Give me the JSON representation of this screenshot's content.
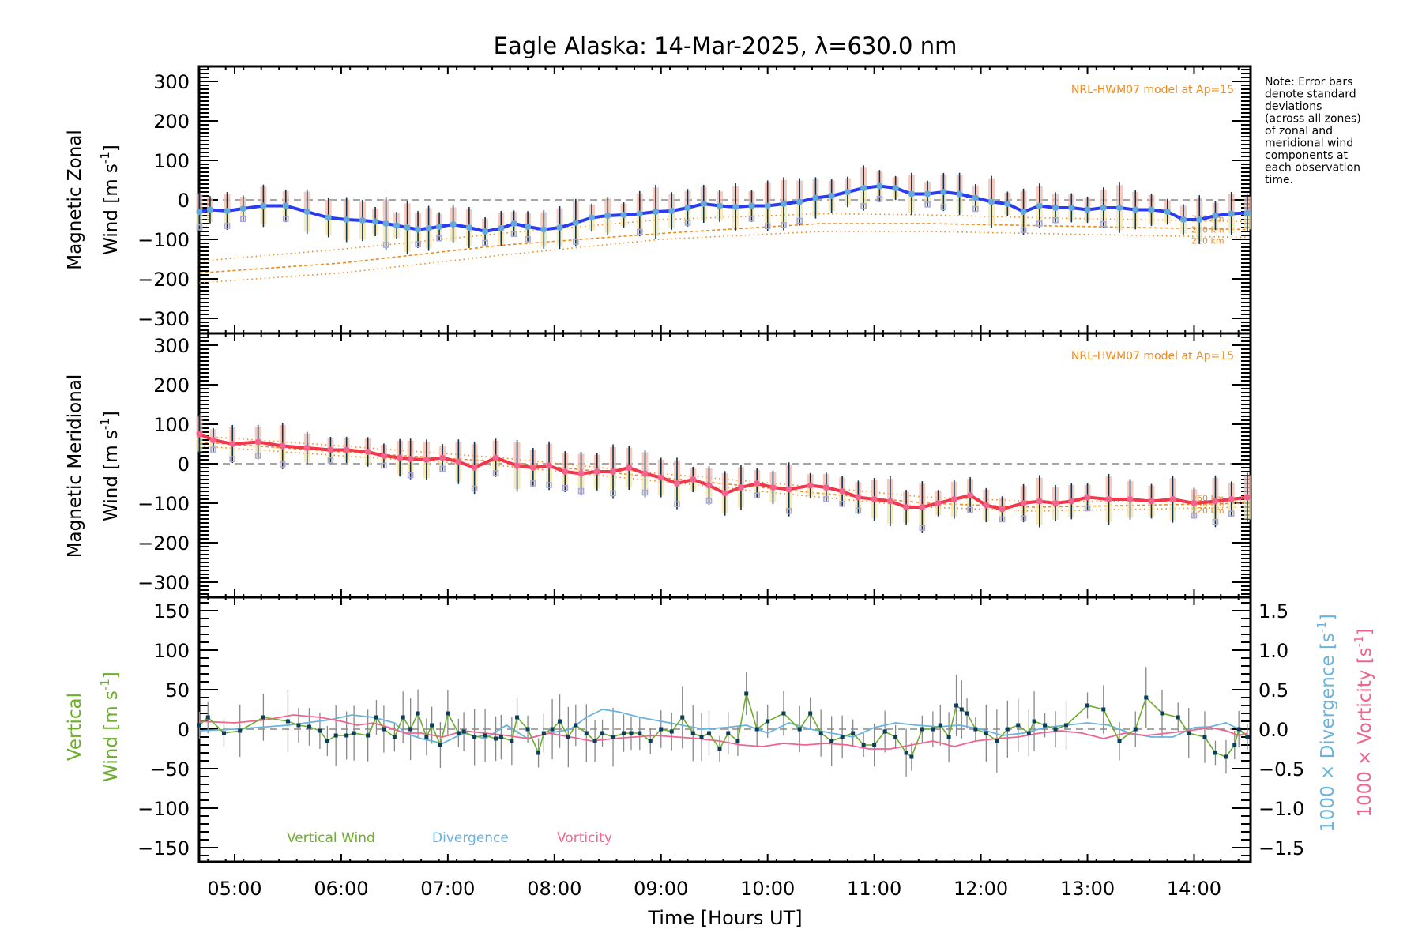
{
  "chart_data": [
    {
      "type": "line",
      "panel": "zonal",
      "title": "Eagle Alaska: 14-Mar-2025, λ=630.0 nm",
      "ylabel_line1": "Magnetic Zonal",
      "ylabel_line2": "Wind [m s",
      "ylabel_sup": "-1",
      "ylabel_close": "]",
      "ylim": [
        -338,
        338
      ],
      "yticks": [
        300,
        200,
        100,
        0,
        -100,
        -200,
        -300
      ],
      "ytick_labels": [
        "300",
        "200",
        "100",
        "0",
        "−100",
        "−200",
        "−300"
      ],
      "model_label": "NRL-HWM07 model at Ap=15",
      "model_altitudes": [
        "260 km",
        "240 km",
        "220 km"
      ],
      "series_color": "#2b3cf0",
      "series": {
        "name": "Zonal wind",
        "x": [
          4.67,
          4.77,
          4.93,
          5.08,
          5.27,
          5.48,
          5.68,
          5.88,
          6.05,
          6.2,
          6.32,
          6.42,
          6.52,
          6.62,
          6.72,
          6.82,
          6.92,
          7.05,
          7.2,
          7.35,
          7.5,
          7.62,
          7.75,
          7.9,
          8.05,
          8.2,
          8.35,
          8.5,
          8.65,
          8.8,
          8.95,
          9.1,
          9.25,
          9.4,
          9.55,
          9.7,
          9.85,
          10.0,
          10.15,
          10.3,
          10.45,
          10.6,
          10.75,
          10.9,
          11.05,
          11.2,
          11.35,
          11.5,
          11.65,
          11.8,
          11.95,
          12.1,
          12.25,
          12.4,
          12.55,
          12.7,
          12.85,
          13.0,
          13.15,
          13.3,
          13.45,
          13.6,
          13.75,
          13.9,
          14.05,
          14.2,
          14.35,
          14.5
        ],
        "values": [
          -30,
          -25,
          -28,
          -22,
          -15,
          -15,
          -30,
          -45,
          -50,
          -52,
          -55,
          -60,
          -65,
          -70,
          -75,
          -72,
          -68,
          -62,
          -70,
          -80,
          -72,
          -60,
          -68,
          -75,
          -70,
          -58,
          -45,
          -40,
          -38,
          -35,
          -30,
          -28,
          -20,
          -10,
          -15,
          -18,
          -15,
          -15,
          -10,
          -5,
          5,
          10,
          20,
          30,
          35,
          30,
          15,
          15,
          20,
          15,
          5,
          -5,
          -10,
          -30,
          -15,
          -20,
          -20,
          -25,
          -20,
          -20,
          -25,
          -25,
          -30,
          -50,
          -50,
          -40,
          -35,
          -33
        ]
      },
      "model_curves": [
        {
          "name": "260 km",
          "x": [
            4.67,
            6.0,
            7.5,
            9.0,
            10.5,
            11.5,
            12.5,
            13.5,
            14.5
          ],
          "values": [
            -155,
            -125,
            -85,
            -50,
            -35,
            -38,
            -45,
            -50,
            -55
          ]
        },
        {
          "name": "240 km",
          "x": [
            4.67,
            6.0,
            7.5,
            9.0,
            10.5,
            11.5,
            12.5,
            13.5,
            14.5
          ],
          "values": [
            -185,
            -160,
            -115,
            -85,
            -60,
            -60,
            -65,
            -70,
            -75
          ]
        },
        {
          "name": "220 km",
          "x": [
            4.67,
            6.0,
            7.5,
            9.0,
            10.5,
            11.5,
            12.5,
            13.5,
            14.5
          ],
          "values": [
            -210,
            -185,
            -140,
            -100,
            -80,
            -80,
            -85,
            -90,
            -95
          ]
        }
      ],
      "note": [
        "Note: Error bars",
        "denote standard",
        "deviations",
        "(across all zones)",
        "of zonal and",
        "meridional wind",
        "components at",
        "each observation",
        "time."
      ]
    },
    {
      "type": "line",
      "panel": "meridional",
      "ylabel_line1": "Magnetic Meridional",
      "ylabel_line2": "Wind [m s",
      "ylabel_sup": "-1",
      "ylabel_close": "]",
      "ylim": [
        -338,
        338
      ],
      "yticks": [
        300,
        200,
        100,
        0,
        -100,
        -200,
        -300
      ],
      "ytick_labels": [
        "300",
        "200",
        "100",
        "0",
        "−100",
        "−200",
        "−300"
      ],
      "model_label": "NRL-HWM07 model at Ap=15",
      "model_altitudes": [
        "260 km",
        "240 km",
        "220 km"
      ],
      "series_color": "#f2364b",
      "series": {
        "name": "Meridional wind",
        "x": [
          4.67,
          4.8,
          4.98,
          5.22,
          5.45,
          5.68,
          5.9,
          6.05,
          6.25,
          6.4,
          6.55,
          6.65,
          6.8,
          6.95,
          7.1,
          7.25,
          7.45,
          7.65,
          7.8,
          7.95,
          8.1,
          8.25,
          8.4,
          8.55,
          8.7,
          8.85,
          9.0,
          9.15,
          9.3,
          9.45,
          9.6,
          9.75,
          9.9,
          10.05,
          10.2,
          10.4,
          10.55,
          10.7,
          10.85,
          11.0,
          11.15,
          11.3,
          11.45,
          11.6,
          11.75,
          11.9,
          12.05,
          12.2,
          12.4,
          12.55,
          12.7,
          12.85,
          13.0,
          13.2,
          13.4,
          13.6,
          13.8,
          14.0,
          14.2,
          14.35,
          14.5
        ],
        "values": [
          75,
          60,
          50,
          55,
          45,
          40,
          35,
          35,
          30,
          20,
          15,
          12,
          10,
          15,
          5,
          -10,
          15,
          -5,
          -10,
          -5,
          -20,
          -25,
          -20,
          -20,
          -10,
          -25,
          -35,
          -50,
          -40,
          -55,
          -75,
          -60,
          -50,
          -60,
          -65,
          -55,
          -60,
          -70,
          -85,
          -90,
          -95,
          -110,
          -110,
          -100,
          -90,
          -80,
          -105,
          -115,
          -100,
          -95,
          -100,
          -95,
          -85,
          -90,
          -90,
          -95,
          -90,
          -100,
          -95,
          -90,
          -85
        ]
      },
      "model_curves": [
        {
          "name": "260 km",
          "x": [
            4.67,
            6.0,
            7.5,
            9.0,
            10.5,
            11.5,
            12.5,
            13.5,
            14.5
          ],
          "values": [
            70,
            45,
            15,
            -25,
            -60,
            -85,
            -95,
            -95,
            -95
          ]
        },
        {
          "name": "240 km",
          "x": [
            4.67,
            6.0,
            7.5,
            9.0,
            10.5,
            11.5,
            12.5,
            13.5,
            14.5
          ],
          "values": [
            55,
            30,
            5,
            -35,
            -75,
            -100,
            -110,
            -105,
            -100
          ]
        },
        {
          "name": "220 km",
          "x": [
            4.67,
            6.0,
            7.5,
            9.0,
            10.5,
            11.5,
            12.5,
            13.5,
            14.5
          ],
          "values": [
            45,
            20,
            -5,
            -45,
            -85,
            -110,
            -120,
            -115,
            -110
          ]
        }
      ]
    },
    {
      "type": "line",
      "panel": "vertical",
      "ylabel_line1": "Vertical",
      "ylabel_line2": "Wind [m s",
      "ylabel_sup": "-1",
      "ylabel_close": "]",
      "ylim": [
        -170,
        170
      ],
      "yticks": [
        150,
        100,
        50,
        0,
        -50,
        -100,
        -150
      ],
      "ytick_labels": [
        "150",
        "100",
        "50",
        "0",
        "−50",
        "−100",
        "−150"
      ],
      "y2lim": [
        -1.7,
        1.7
      ],
      "y2ticks": [
        1.5,
        1.0,
        0.5,
        0.0,
        -0.5,
        -1.0,
        -1.5
      ],
      "y2tick_labels": [
        "1.5",
        "1.0",
        "0.5",
        "0.0",
        "−0.5",
        "−1.0",
        "−1.5"
      ],
      "y2label_div": "1000 × Divergence [s",
      "y2label_vort": "1000 × Vorticity [s",
      "y2label_sup": "-1",
      "y2label_close": "]",
      "xlabel": "Time [Hours UT]",
      "xticks": [
        5,
        6,
        7,
        8,
        9,
        10,
        11,
        12,
        13,
        14
      ],
      "xtick_labels": [
        "05:00",
        "06:00",
        "07:00",
        "08:00",
        "09:00",
        "10:00",
        "11:00",
        "12:00",
        "13:00",
        "14:00"
      ],
      "xlim": [
        4.6667,
        14.53
      ],
      "legend": [
        {
          "label": "Vertical Wind",
          "color": "#6cae2c"
        },
        {
          "label": "Divergence",
          "color": "#6ab3df"
        },
        {
          "label": "Vorticity",
          "color": "#f2648e"
        }
      ],
      "series": [
        {
          "name": "Vertical Wind",
          "color": "#6cae2c",
          "x": [
            4.67,
            4.75,
            4.9,
            5.05,
            5.27,
            5.5,
            5.6,
            5.7,
            5.8,
            5.87,
            5.95,
            6.05,
            6.12,
            6.25,
            6.33,
            6.4,
            6.5,
            6.58,
            6.65,
            6.72,
            6.8,
            6.85,
            6.93,
            7.0,
            7.1,
            7.15,
            7.25,
            7.35,
            7.45,
            7.5,
            7.6,
            7.65,
            7.75,
            7.85,
            7.9,
            7.98,
            8.05,
            8.13,
            8.2,
            8.3,
            8.38,
            8.45,
            8.55,
            8.65,
            8.72,
            8.8,
            8.9,
            9.0,
            9.1,
            9.2,
            9.3,
            9.38,
            9.45,
            9.55,
            9.63,
            9.72,
            9.8,
            9.9,
            10.0,
            10.15,
            10.3,
            10.4,
            10.5,
            10.6,
            10.7,
            10.8,
            10.9,
            11.0,
            11.1,
            11.2,
            11.3,
            11.35,
            11.45,
            11.55,
            11.62,
            11.7,
            11.77,
            11.82,
            11.87,
            11.95,
            12.05,
            12.15,
            12.25,
            12.35,
            12.45,
            12.5,
            12.6,
            12.7,
            12.8,
            13.0,
            13.15,
            13.3,
            13.45,
            13.55,
            13.7,
            13.85,
            13.95,
            14.1,
            14.2,
            14.3,
            14.38,
            14.42,
            14.5
          ],
          "values": [
            5,
            15,
            -5,
            -2,
            15,
            10,
            5,
            3,
            -2,
            -15,
            -8,
            -8,
            -5,
            -8,
            15,
            0,
            -10,
            15,
            0,
            20,
            -10,
            5,
            -20,
            20,
            -5,
            -3,
            -10,
            -8,
            -12,
            -10,
            -15,
            15,
            0,
            -30,
            -5,
            0,
            10,
            -10,
            5,
            -5,
            -15,
            -5,
            -10,
            -5,
            -5,
            -5,
            -15,
            0,
            -3,
            15,
            -5,
            -10,
            -5,
            -25,
            -5,
            -15,
            45,
            0,
            10,
            20,
            0,
            20,
            -5,
            -15,
            -10,
            -5,
            -20,
            -20,
            -3,
            -10,
            -30,
            -35,
            0,
            0,
            5,
            -10,
            30,
            25,
            20,
            0,
            -5,
            -15,
            0,
            5,
            -5,
            10,
            5,
            0,
            5,
            30,
            25,
            -15,
            0,
            40,
            20,
            15,
            -5,
            -10,
            -30,
            -35,
            -20,
            0,
            -10
          ]
        },
        {
          "name": "Divergence",
          "color": "#6ab3df",
          "x": [
            4.67,
            5.0,
            5.5,
            5.9,
            6.1,
            6.3,
            6.5,
            6.6,
            6.75,
            6.95,
            7.15,
            7.35,
            7.55,
            7.75,
            7.95,
            8.15,
            8.3,
            8.45,
            8.6,
            8.8,
            9.0,
            9.2,
            9.4,
            9.6,
            9.8,
            10.0,
            10.2,
            10.4,
            10.6,
            10.8,
            11.0,
            11.2,
            11.4,
            11.6,
            11.8,
            12.0,
            12.2,
            12.4,
            12.6,
            12.8,
            13.0,
            13.2,
            13.4,
            13.6,
            13.8,
            14.0,
            14.15,
            14.3,
            14.42,
            14.5
          ],
          "values": [
            -0.02,
            0.0,
            0.05,
            0.12,
            0.18,
            0.15,
            0.08,
            -0.05,
            -0.12,
            -0.18,
            -0.05,
            -0.12,
            0.05,
            -0.12,
            -0.05,
            0.0,
            0.15,
            0.25,
            0.22,
            0.15,
            0.1,
            0.05,
            0.0,
            0.02,
            0.05,
            -0.05,
            0.08,
            0.0,
            -0.05,
            -0.1,
            0.02,
            0.08,
            0.05,
            0.03,
            0.05,
            0.0,
            -0.08,
            -0.05,
            0.02,
            0.05,
            0.08,
            0.05,
            -0.05,
            -0.1,
            -0.1,
            0.02,
            0.03,
            0.08,
            0.0,
            -0.08
          ]
        },
        {
          "name": "Vorticity",
          "color": "#f2648e",
          "x": [
            4.67,
            5.0,
            5.3,
            5.55,
            5.8,
            6.0,
            6.15,
            6.3,
            6.45,
            6.6,
            6.75,
            6.95,
            7.15,
            7.35,
            7.55,
            7.75,
            7.95,
            8.15,
            8.35,
            8.55,
            8.75,
            8.95,
            9.15,
            9.35,
            9.55,
            9.75,
            9.95,
            10.15,
            10.35,
            10.55,
            10.75,
            10.95,
            11.15,
            11.35,
            11.55,
            11.75,
            11.95,
            12.15,
            12.35,
            12.55,
            12.75,
            12.95,
            13.15,
            13.35,
            13.55,
            13.75,
            13.95,
            14.15,
            14.3,
            14.42,
            14.5
          ],
          "values": [
            0.1,
            0.08,
            0.12,
            0.18,
            0.15,
            0.1,
            0.05,
            0.08,
            0.02,
            -0.05,
            -0.05,
            -0.1,
            -0.02,
            -0.05,
            -0.08,
            -0.12,
            -0.05,
            -0.1,
            -0.15,
            -0.12,
            -0.1,
            -0.08,
            -0.1,
            -0.12,
            -0.15,
            -0.2,
            -0.22,
            -0.18,
            -0.2,
            -0.18,
            -0.2,
            -0.25,
            -0.25,
            -0.2,
            -0.15,
            -0.22,
            -0.15,
            -0.12,
            -0.1,
            -0.05,
            -0.02,
            -0.05,
            -0.12,
            -0.05,
            -0.08,
            -0.05,
            -0.02,
            0.02,
            -0.02,
            -0.08,
            -0.05
          ]
        }
      ]
    }
  ]
}
